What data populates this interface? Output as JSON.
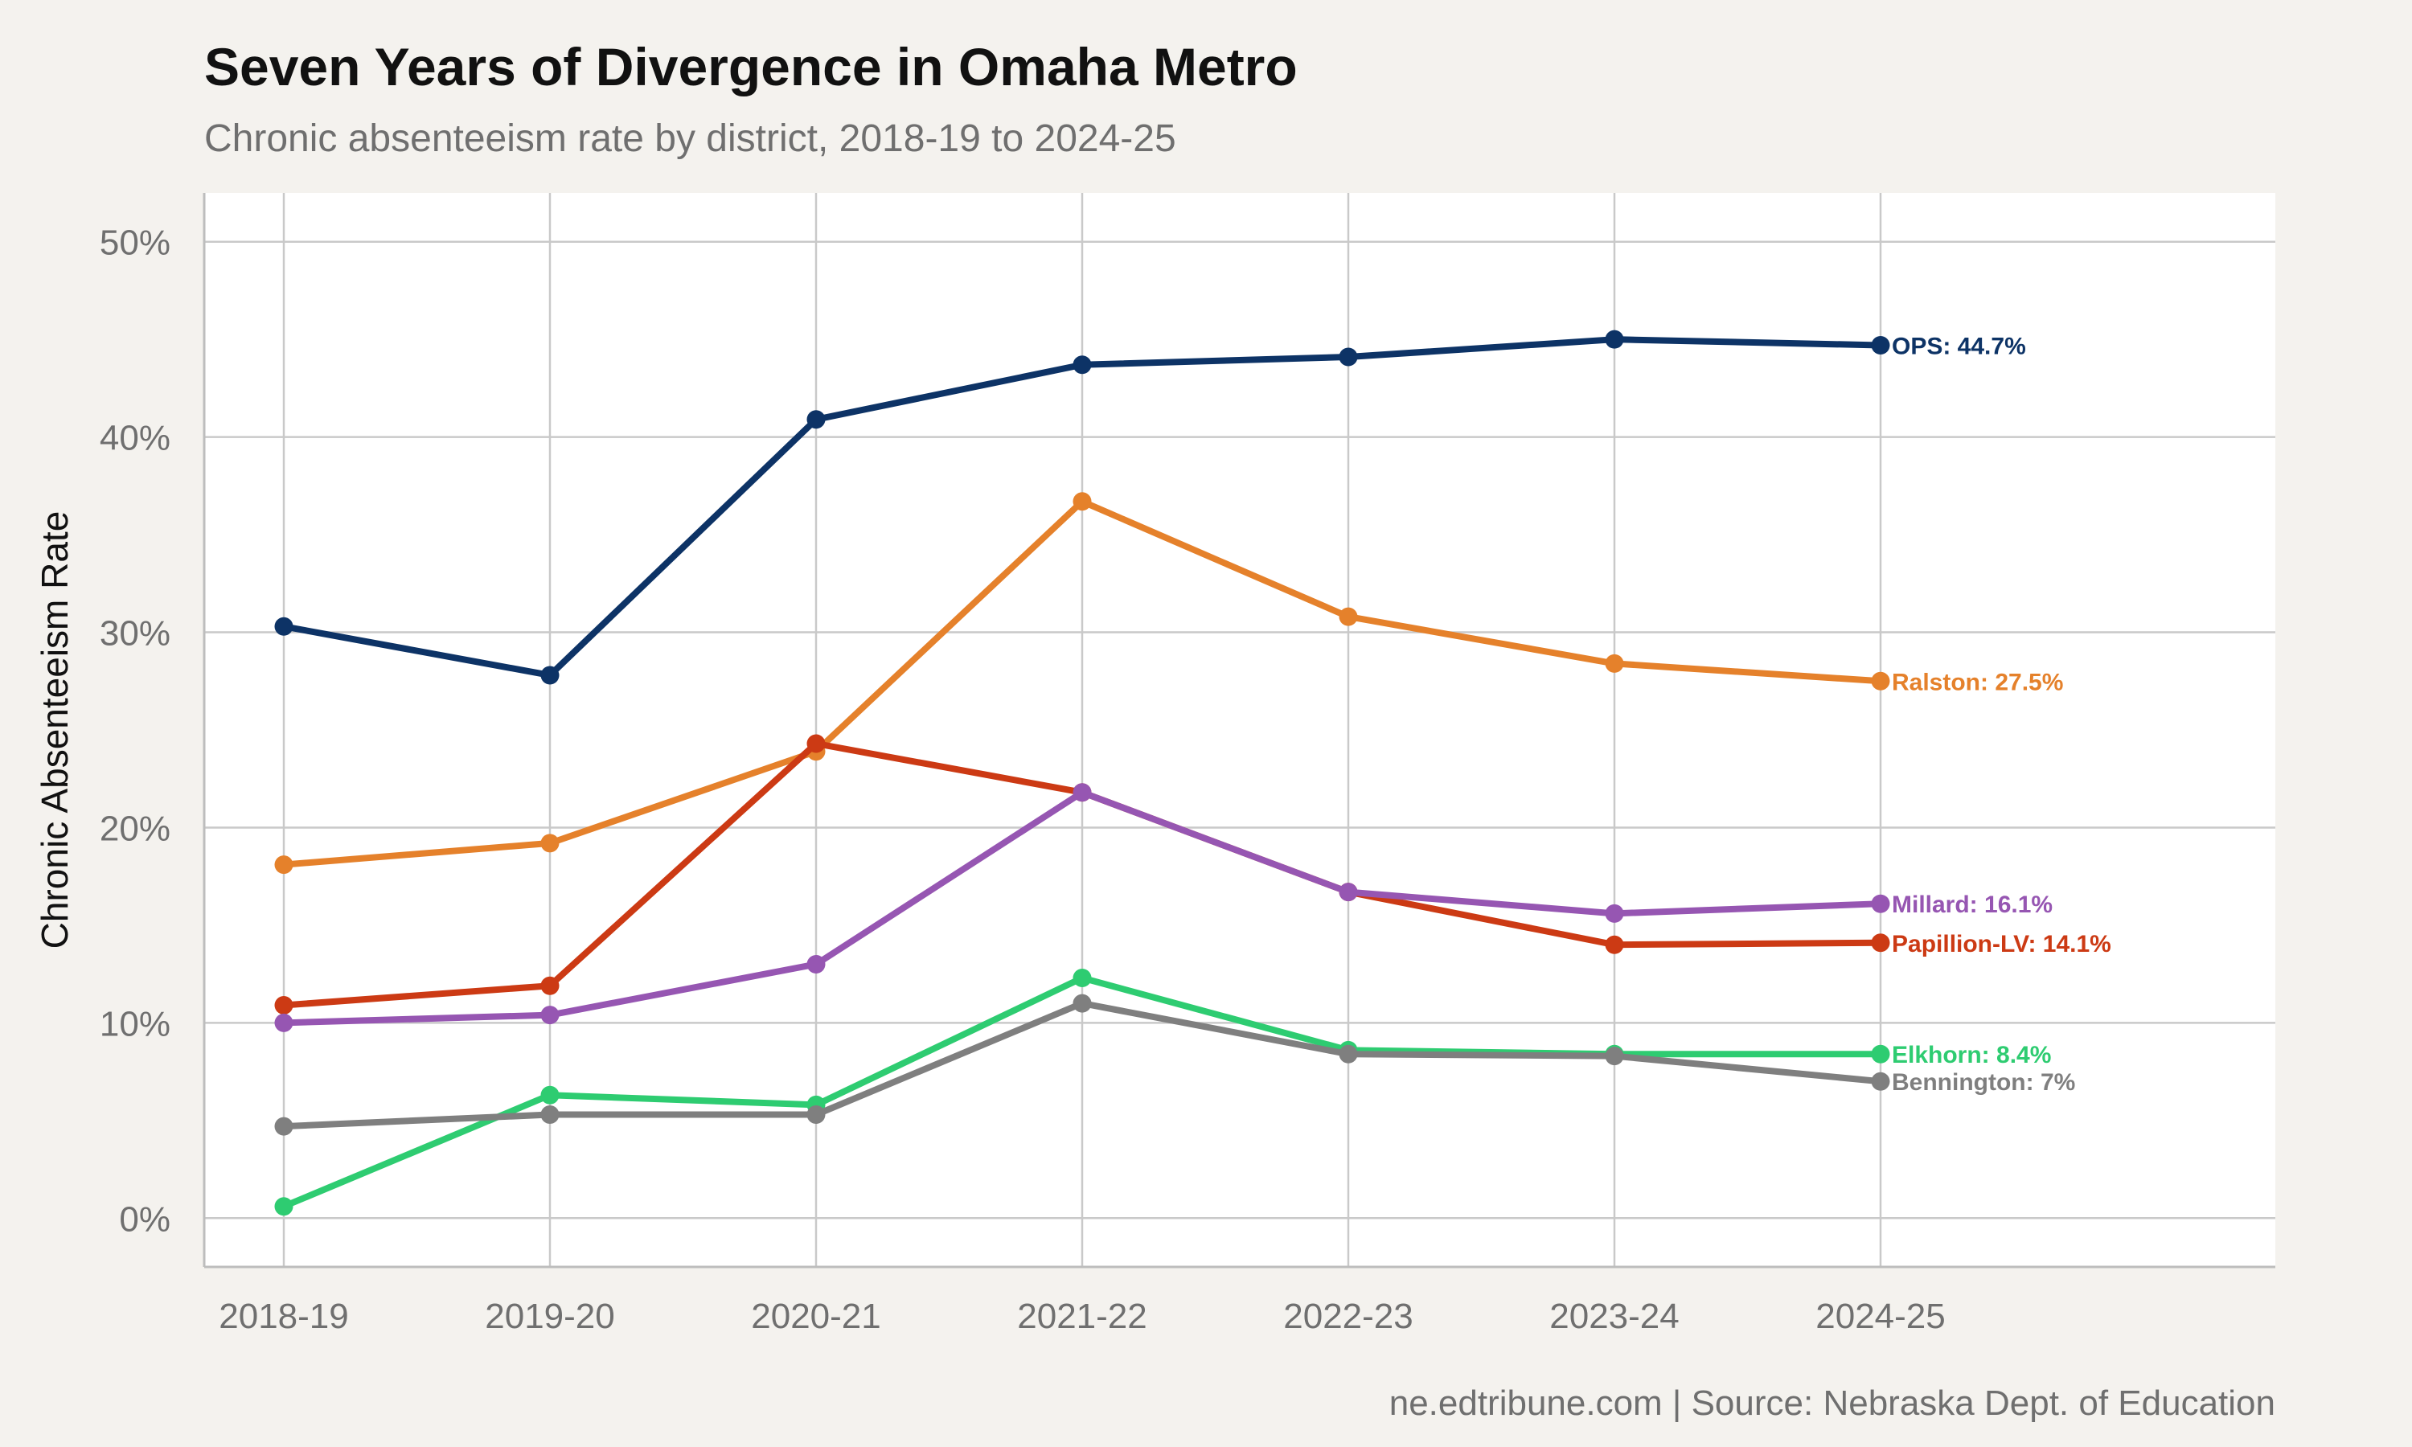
{
  "chart_data": {
    "type": "line",
    "title": "Seven Years of Divergence in Omaha Metro",
    "subtitle": "Chronic absenteeism rate by district, 2018-19 to 2024-25",
    "xlabel": "",
    "ylabel": "Chronic Absenteeism Rate",
    "caption": "ne.edtribune.com | Source: Nebraska Dept. of Education",
    "categories": [
      "2018-19",
      "2019-20",
      "2020-21",
      "2021-22",
      "2022-23",
      "2023-24",
      "2024-25"
    ],
    "ylim": [
      -2.5,
      52.5
    ],
    "yticks": [
      0,
      10,
      20,
      30,
      40,
      50
    ],
    "ytick_labels": [
      "0%",
      "10%",
      "20%",
      "30%",
      "40%",
      "50%"
    ],
    "grid": true,
    "legend": "none (direct labels at line ends)",
    "series": [
      {
        "name": "OPS",
        "color": "#0d3366",
        "values": [
          30.3,
          27.8,
          40.9,
          43.7,
          44.1,
          45.0,
          44.7
        ],
        "end_label": "OPS: 44.7%"
      },
      {
        "name": "Ralston",
        "color": "#e5812b",
        "values": [
          18.1,
          19.2,
          23.9,
          36.7,
          30.8,
          28.4,
          27.5
        ],
        "end_label": "Ralston: 27.5%"
      },
      {
        "name": "Papillion-LV",
        "color": "#cc3a14",
        "values": [
          10.9,
          11.9,
          24.3,
          21.8,
          16.7,
          14.0,
          14.1
        ],
        "end_label": "Papillion-LV: 14.1%"
      },
      {
        "name": "Millard",
        "color": "#9656b2",
        "values": [
          10.0,
          10.4,
          13.0,
          21.8,
          16.7,
          15.6,
          16.1
        ],
        "end_label": "Millard: 16.1%"
      },
      {
        "name": "Elkhorn",
        "color": "#2ecc71",
        "values": [
          0.6,
          6.3,
          5.8,
          12.3,
          8.6,
          8.4,
          8.4
        ],
        "end_label": "Elkhorn: 8.4%"
      },
      {
        "name": "Bennington",
        "color": "#7f7f7f",
        "values": [
          4.7,
          5.3,
          5.3,
          11.0,
          8.4,
          8.3,
          7.0
        ],
        "end_label": "Bennington: 7%"
      }
    ]
  }
}
